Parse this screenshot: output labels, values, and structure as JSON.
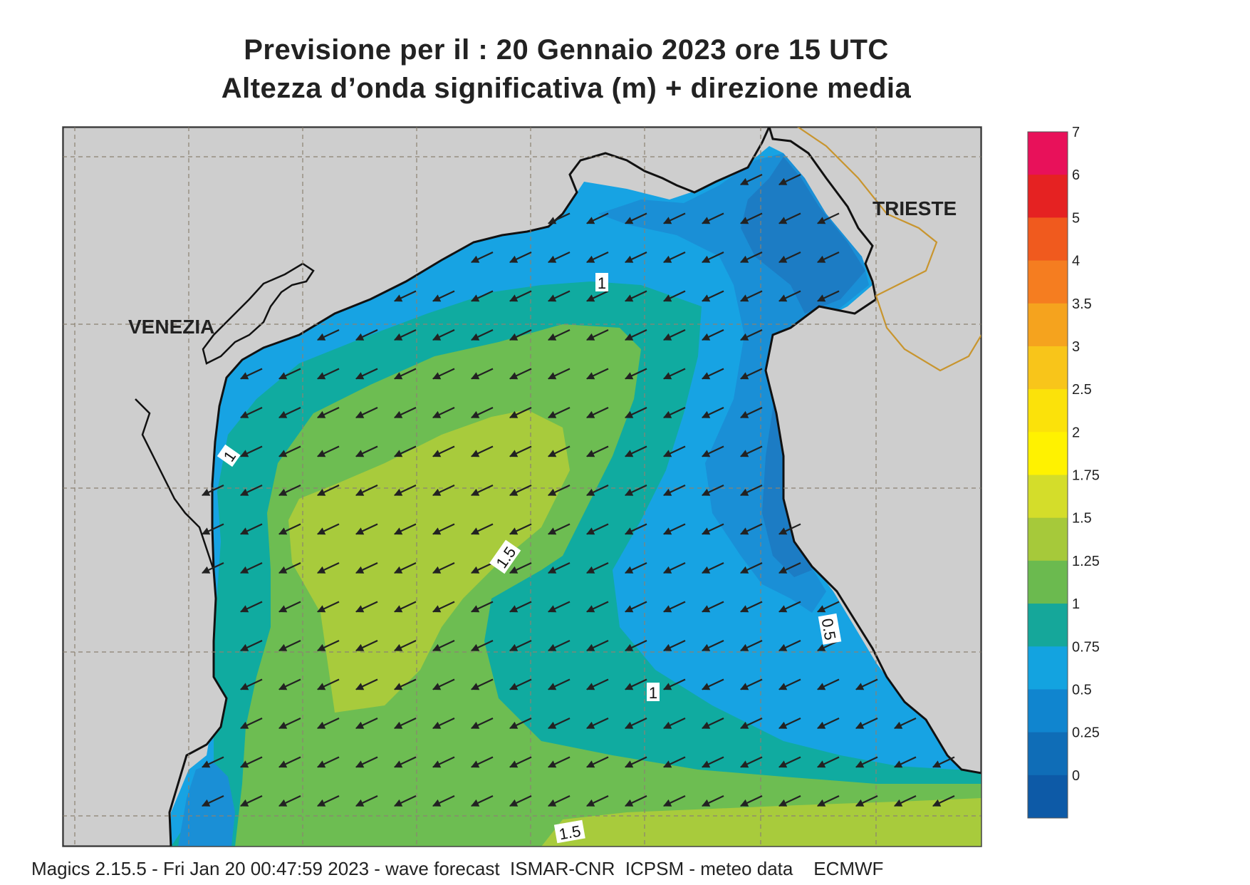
{
  "title": {
    "line1": "Previsione per il  :  20  Gennaio  2023   ore 15 UTC",
    "line2": "Altezza d’onda significativa (m) + direzione media"
  },
  "cities": {
    "venezia": "VENEZIA",
    "trieste": "TRIESTE"
  },
  "contour_labels": [
    "1",
    "1",
    "1.5",
    "0.5",
    "1",
    "1.5"
  ],
  "legend": {
    "levels": [
      "7",
      "6",
      "5",
      "4",
      "3.5",
      "3",
      "2.5",
      "2",
      "1.75",
      "1.5",
      "1.25",
      "1",
      "0.75",
      "0.5",
      "0.25",
      "0"
    ],
    "colors": [
      "#e8115a",
      "#e52222",
      "#f05a1e",
      "#f57d20",
      "#f5a31e",
      "#f8c51a",
      "#fbe20a",
      "#fff200",
      "#d4dd2a",
      "#a6c93a",
      "#6bba4f",
      "#15a79a",
      "#13a3e0",
      "#1085cf",
      "#0f6db7",
      "#0d5aa7"
    ]
  },
  "colors": {
    "land": "#cecece",
    "coast": "#111111",
    "border": "#c8952e",
    "grid": "#8c8272",
    "h_0_05": "#1c7cc4",
    "h_05_075": "#1a8fd6",
    "h_075_1": "#17a3e3",
    "h_1_125": "#10aba0",
    "h_125_15": "#6dbd52",
    "h_15_175": "#a8cb3c"
  },
  "wave_direction": "southwest",
  "footer": "Magics 2.15.5 - Fri Jan 20 00:47:59 2023 - wave forecast  ISMAR-CNR  ICPSM - meteo data    ECMWF"
}
